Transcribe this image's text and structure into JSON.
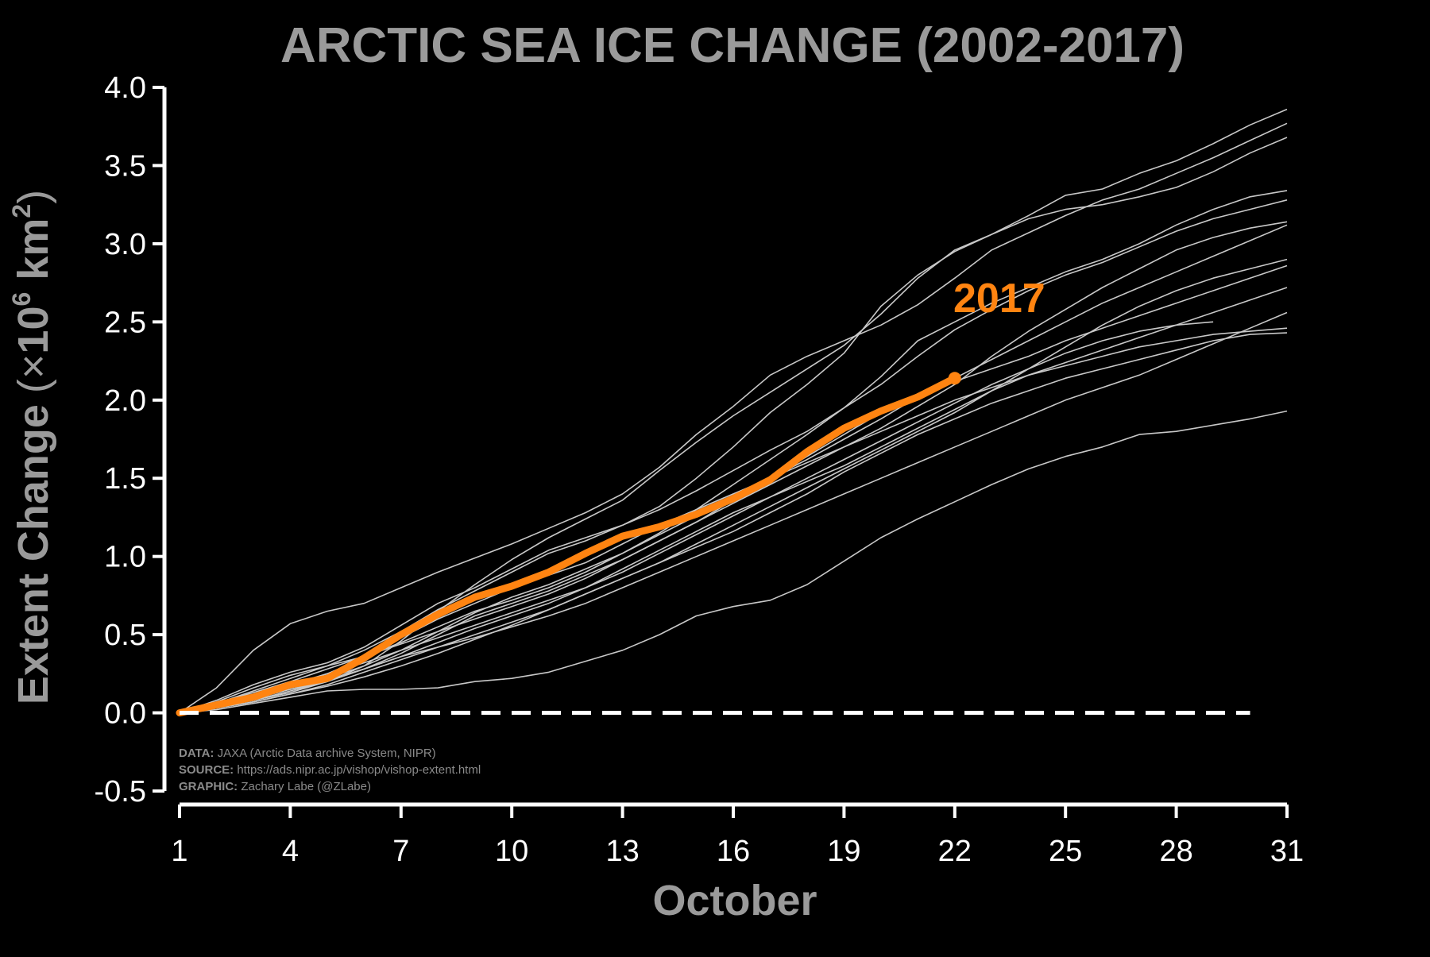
{
  "chart_data": {
    "type": "line",
    "title": "ARCTIC SEA ICE CHANGE (2002-2017)",
    "xlabel": "October",
    "ylabel": {
      "prefix": "Extent Change",
      "open": "(",
      "times": "×",
      "base": "10",
      "exp": "6",
      "unit": " km",
      "unit_exp": "2",
      "close": ")"
    },
    "xlim": [
      1,
      31
    ],
    "ylim": [
      -0.5,
      4.0
    ],
    "x_ticks": [
      1,
      4,
      7,
      10,
      13,
      16,
      19,
      22,
      25,
      28,
      31
    ],
    "y_ticks": [
      -0.5,
      0.0,
      0.5,
      1.0,
      1.5,
      2.0,
      2.5,
      3.0,
      3.5,
      4.0
    ],
    "y_tick_labels": [
      "-0.5",
      "0.0",
      "0.5",
      "1.0",
      "1.5",
      "2.0",
      "2.5",
      "3.0",
      "3.5",
      "4.0"
    ],
    "reference_line": {
      "y": 0.0,
      "x_range": [
        1,
        30
      ],
      "style": "dashed",
      "color": "#ffffff"
    },
    "colors": {
      "background": "#000000",
      "axes": "#ffffff",
      "series": "#c8c8c8",
      "highlight": "#ff8411",
      "text_gray": "#9a9a9a"
    },
    "grid": false,
    "legend": "none",
    "credits": [
      {
        "key": "DATA:",
        "value": " JAXA (Arctic Data archive System, NIPR)"
      },
      {
        "key": "SOURCE:",
        "value": " https://ads.nipr.ac.jp/vishop/vishop-extent.html"
      },
      {
        "key": "GRAPHIC:",
        "value": " Zachary Labe (@ZLabe)"
      }
    ],
    "highlight_series": {
      "name": "2017",
      "x": [
        1,
        2,
        3,
        4,
        5,
        6,
        7,
        8,
        9,
        10,
        11,
        12,
        13,
        14,
        15,
        16,
        17,
        18,
        19,
        20,
        21,
        22
      ],
      "values": [
        0.0,
        0.05,
        0.1,
        0.18,
        0.22,
        0.35,
        0.5,
        0.63,
        0.74,
        0.81,
        0.9,
        1.02,
        1.13,
        1.19,
        1.27,
        1.37,
        1.49,
        1.67,
        1.82,
        1.93,
        2.02,
        2.14
      ]
    },
    "series": [
      {
        "x": [
          1,
          2,
          3,
          4,
          5,
          6,
          7,
          8,
          9,
          10,
          11,
          12,
          13,
          14,
          15,
          16,
          17,
          18,
          19,
          20,
          21,
          22,
          23,
          24,
          25,
          26,
          27,
          28,
          29,
          30,
          31
        ],
        "values": [
          0.0,
          0.16,
          0.4,
          0.57,
          0.65,
          0.7,
          0.8,
          0.9,
          0.99,
          1.08,
          1.18,
          1.28,
          1.4,
          1.57,
          1.78,
          1.96,
          2.16,
          2.28,
          2.38,
          2.48,
          2.61,
          2.78,
          2.96,
          3.07,
          3.18,
          3.28,
          3.35,
          3.45,
          3.55,
          3.66,
          3.77
        ]
      },
      {
        "x": [
          1,
          2,
          3,
          4,
          5,
          6,
          7,
          8,
          9,
          10,
          11,
          12,
          13,
          14,
          15,
          16,
          17,
          18,
          19,
          20,
          21,
          22,
          23,
          24,
          25,
          26,
          27,
          28,
          29,
          30,
          31
        ],
        "values": [
          0.0,
          0.05,
          0.1,
          0.15,
          0.2,
          0.3,
          0.46,
          0.65,
          0.82,
          0.98,
          1.12,
          1.24,
          1.36,
          1.55,
          1.73,
          1.9,
          2.05,
          2.2,
          2.35,
          2.55,
          2.78,
          2.96,
          3.06,
          3.18,
          3.31,
          3.35,
          3.45,
          3.53,
          3.64,
          3.76,
          3.86
        ]
      },
      {
        "x": [
          1,
          2,
          3,
          4,
          5,
          6,
          7,
          8,
          9,
          10,
          11,
          12,
          13,
          14,
          15,
          16,
          17,
          18,
          19,
          20,
          21,
          22,
          23,
          24,
          25,
          26,
          27,
          28,
          29,
          30,
          31
        ],
        "values": [
          0.0,
          0.06,
          0.14,
          0.22,
          0.3,
          0.4,
          0.52,
          0.66,
          0.78,
          0.9,
          1.02,
          1.1,
          1.2,
          1.32,
          1.5,
          1.7,
          1.92,
          2.1,
          2.3,
          2.6,
          2.8,
          2.95,
          3.06,
          3.16,
          3.22,
          3.25,
          3.3,
          3.36,
          3.46,
          3.58,
          3.68
        ]
      },
      {
        "x": [
          1,
          2,
          3,
          4,
          5,
          6,
          7,
          8,
          9,
          10,
          11,
          12,
          13,
          14,
          15,
          16,
          17,
          18,
          19,
          20,
          21,
          22,
          23,
          24,
          25,
          26,
          27,
          28,
          29,
          30,
          31
        ],
        "values": [
          0.0,
          0.08,
          0.18,
          0.26,
          0.32,
          0.42,
          0.56,
          0.7,
          0.8,
          0.92,
          1.04,
          1.12,
          1.2,
          1.3,
          1.42,
          1.55,
          1.68,
          1.8,
          1.95,
          2.15,
          2.38,
          2.5,
          2.62,
          2.72,
          2.82,
          2.9,
          3.0,
          3.12,
          3.22,
          3.3,
          3.34
        ]
      },
      {
        "x": [
          1,
          2,
          3,
          4,
          5,
          6,
          7,
          8,
          9,
          10,
          11,
          12,
          13,
          14,
          15,
          16,
          17,
          18,
          19,
          20,
          21,
          22,
          23,
          24,
          25,
          26,
          27,
          28,
          29,
          30,
          31
        ],
        "values": [
          0.0,
          0.07,
          0.16,
          0.24,
          0.3,
          0.36,
          0.45,
          0.55,
          0.65,
          0.72,
          0.8,
          0.9,
          1.02,
          1.15,
          1.3,
          1.46,
          1.62,
          1.78,
          1.95,
          2.1,
          2.28,
          2.45,
          2.58,
          2.7,
          2.8,
          2.88,
          2.98,
          3.08,
          3.16,
          3.22,
          3.28
        ]
      },
      {
        "x": [
          1,
          2,
          3,
          4,
          5,
          6,
          7,
          8,
          9,
          10,
          11,
          12,
          13,
          14,
          15,
          16,
          17,
          18,
          19,
          20,
          21,
          22,
          23,
          24,
          25,
          26,
          27,
          28,
          29,
          30,
          31
        ],
        "values": [
          0.0,
          0.04,
          0.08,
          0.14,
          0.2,
          0.28,
          0.38,
          0.5,
          0.62,
          0.7,
          0.78,
          0.88,
          0.98,
          1.1,
          1.22,
          1.34,
          1.46,
          1.58,
          1.7,
          1.82,
          1.96,
          2.1,
          2.28,
          2.44,
          2.58,
          2.72,
          2.84,
          2.96,
          3.04,
          3.1,
          3.14
        ]
      },
      {
        "x": [
          1,
          2,
          3,
          4,
          5,
          6,
          7,
          8,
          9,
          10,
          11,
          12,
          13,
          14,
          15,
          16,
          17,
          18,
          19,
          20,
          21,
          22,
          23,
          24,
          25,
          26,
          27,
          28,
          29,
          30,
          31
        ],
        "values": [
          0.0,
          0.05,
          0.1,
          0.17,
          0.25,
          0.35,
          0.48,
          0.6,
          0.7,
          0.8,
          0.88,
          0.96,
          1.08,
          1.2,
          1.3,
          1.4,
          1.5,
          1.62,
          1.75,
          1.88,
          2.02,
          2.14,
          2.26,
          2.38,
          2.5,
          2.62,
          2.72,
          2.82,
          2.92,
          3.02,
          3.12
        ]
      },
      {
        "x": [
          1,
          2,
          3,
          4,
          5,
          6,
          7,
          8,
          9,
          10,
          11,
          12,
          13,
          14,
          15,
          16,
          17,
          18,
          19,
          20,
          21,
          22,
          23,
          24,
          25,
          26,
          27,
          28,
          29,
          30,
          31
        ],
        "values": [
          0.0,
          0.03,
          0.07,
          0.12,
          0.17,
          0.23,
          0.3,
          0.38,
          0.47,
          0.56,
          0.66,
          0.76,
          0.86,
          0.96,
          1.08,
          1.2,
          1.32,
          1.44,
          1.56,
          1.68,
          1.8,
          1.92,
          2.06,
          2.2,
          2.34,
          2.48,
          2.6,
          2.7,
          2.78,
          2.84,
          2.9
        ]
      },
      {
        "x": [
          1,
          2,
          3,
          4,
          5,
          6,
          7,
          8,
          9,
          10,
          11,
          12,
          13,
          14,
          15,
          16,
          17,
          18,
          19,
          20,
          21,
          22,
          23,
          24,
          25,
          26,
          27,
          28,
          29,
          30,
          31
        ],
        "values": [
          0.0,
          0.06,
          0.13,
          0.2,
          0.28,
          0.36,
          0.44,
          0.52,
          0.6,
          0.68,
          0.76,
          0.86,
          0.98,
          1.1,
          1.22,
          1.36,
          1.5,
          1.64,
          1.78,
          1.92,
          2.04,
          2.12,
          2.2,
          2.28,
          2.38,
          2.46,
          2.54,
          2.62,
          2.7,
          2.78,
          2.86
        ]
      },
      {
        "x": [
          1,
          2,
          3,
          4,
          5,
          6,
          7,
          8,
          9,
          10,
          11,
          12,
          13,
          14,
          15,
          16,
          17,
          18,
          19,
          20,
          21,
          22,
          23,
          24,
          25,
          26,
          27,
          28,
          29,
          30,
          31
        ],
        "values": [
          0.0,
          0.04,
          0.09,
          0.15,
          0.21,
          0.28,
          0.36,
          0.45,
          0.54,
          0.62,
          0.7,
          0.8,
          0.92,
          1.04,
          1.16,
          1.28,
          1.38,
          1.48,
          1.58,
          1.7,
          1.82,
          1.94,
          2.06,
          2.16,
          2.24,
          2.32,
          2.4,
          2.48,
          2.56,
          2.64,
          2.72
        ]
      },
      {
        "x": [
          1,
          2,
          3,
          4,
          5,
          6,
          7,
          8,
          9,
          10,
          11,
          12,
          13,
          14,
          15,
          16,
          17,
          18,
          19,
          20,
          21,
          22,
          23,
          24,
          25,
          26,
          27,
          28,
          29
        ],
        "values": [
          0.0,
          0.05,
          0.11,
          0.18,
          0.25,
          0.32,
          0.4,
          0.48,
          0.56,
          0.64,
          0.72,
          0.8,
          0.9,
          1.02,
          1.14,
          1.26,
          1.38,
          1.5,
          1.62,
          1.74,
          1.86,
          1.98,
          2.1,
          2.2,
          2.3,
          2.38,
          2.44,
          2.48,
          2.5
        ]
      },
      {
        "x": [
          1,
          2,
          3,
          4,
          5,
          6,
          7,
          8,
          9,
          10,
          11,
          12,
          13,
          14,
          15,
          16,
          17,
          18,
          19,
          20,
          21,
          22,
          23,
          24,
          25,
          26,
          27,
          28,
          29,
          30,
          31
        ],
        "values": [
          0.0,
          0.05,
          0.1,
          0.16,
          0.22,
          0.3,
          0.4,
          0.52,
          0.64,
          0.74,
          0.82,
          0.92,
          1.02,
          1.14,
          1.26,
          1.38,
          1.5,
          1.6,
          1.7,
          1.8,
          1.9,
          2.0,
          2.08,
          2.16,
          2.22,
          2.28,
          2.34,
          2.38,
          2.42,
          2.44,
          2.46
        ]
      },
      {
        "x": [
          1,
          2,
          3,
          4,
          5,
          6,
          7,
          8,
          9,
          10,
          11,
          12,
          13,
          14,
          15,
          16,
          17,
          18,
          19,
          20,
          21,
          22,
          23,
          24,
          25,
          26,
          27,
          28,
          29,
          30,
          31
        ],
        "values": [
          0.0,
          0.03,
          0.07,
          0.12,
          0.18,
          0.26,
          0.34,
          0.42,
          0.5,
          0.58,
          0.66,
          0.76,
          0.86,
          0.96,
          1.06,
          1.16,
          1.28,
          1.4,
          1.54,
          1.66,
          1.78,
          1.88,
          1.98,
          2.06,
          2.14,
          2.2,
          2.26,
          2.32,
          2.38,
          2.42,
          2.43
        ]
      },
      {
        "x": [
          1,
          2,
          3,
          4,
          5,
          6,
          7,
          8,
          9,
          10,
          11,
          12,
          13,
          14,
          15,
          16,
          17,
          18,
          19,
          20,
          21,
          22,
          23,
          24,
          25,
          26,
          27,
          28,
          29,
          30,
          31
        ],
        "values": [
          0.0,
          0.04,
          0.08,
          0.13,
          0.2,
          0.28,
          0.36,
          0.42,
          0.48,
          0.55,
          0.62,
          0.7,
          0.8,
          0.9,
          1.0,
          1.1,
          1.2,
          1.3,
          1.4,
          1.5,
          1.6,
          1.7,
          1.8,
          1.9,
          2.0,
          2.08,
          2.16,
          2.26,
          2.36,
          2.46,
          2.56
        ]
      },
      {
        "x": [
          1,
          2,
          3,
          4,
          5,
          6,
          7,
          8,
          9,
          10,
          11,
          12,
          13,
          14,
          15,
          16,
          17,
          18,
          19,
          20,
          21,
          22,
          23,
          24,
          25,
          26,
          27,
          28,
          29,
          30,
          31
        ],
        "values": [
          0.0,
          0.02,
          0.06,
          0.1,
          0.14,
          0.15,
          0.15,
          0.16,
          0.2,
          0.22,
          0.26,
          0.33,
          0.4,
          0.5,
          0.62,
          0.68,
          0.72,
          0.82,
          0.97,
          1.12,
          1.24,
          1.35,
          1.46,
          1.56,
          1.64,
          1.7,
          1.78,
          1.8,
          1.84,
          1.88,
          1.93
        ]
      }
    ]
  }
}
